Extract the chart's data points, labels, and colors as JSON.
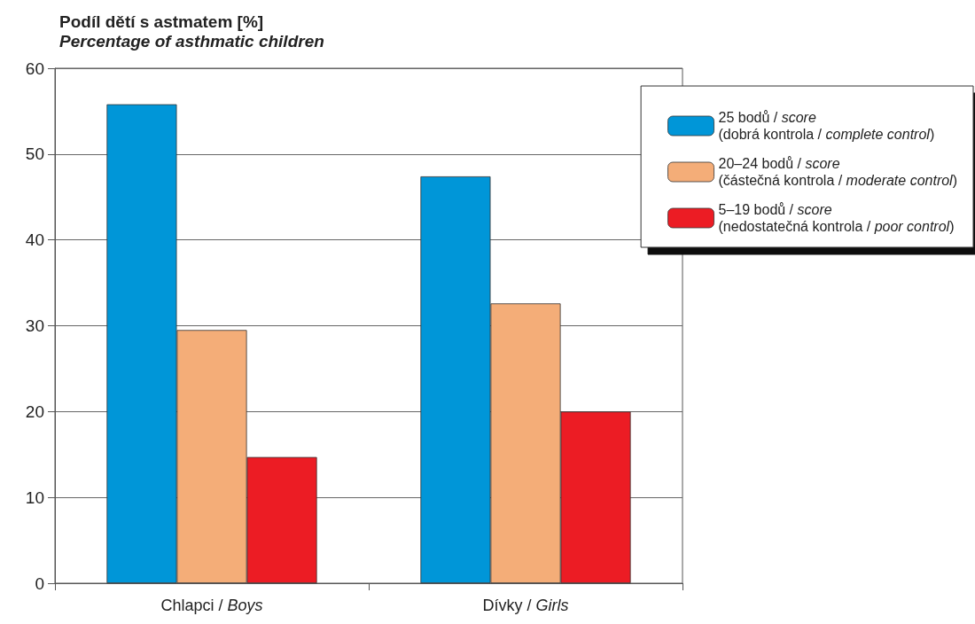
{
  "chart_data": {
    "type": "bar",
    "ylabel": "Podíl dětí s astmatem [%]\nPercentage of asthmatic children",
    "categories": [
      "Chlapci / Boys",
      "Dívky / Girls"
    ],
    "series": [
      {
        "name": "25 bodů / score\n(dobrá kontrola / complete control)",
        "color": "#0096d8",
        "values": [
          55.8,
          47.4
        ]
      },
      {
        "name": "20–24 bodů / score\n(částečná kontrola / moderate control)",
        "color": "#f4ad78",
        "values": [
          29.5,
          32.6
        ]
      },
      {
        "name": "5–19 bodů / score\n(nedostatečná kontrola / poor control)",
        "color": "#ec1c24",
        "values": [
          14.7,
          20.0
        ]
      }
    ],
    "ylim": [
      0,
      60
    ],
    "yticks": [
      0,
      10,
      20,
      30,
      40,
      50,
      60
    ],
    "grid": "y",
    "legend": "top right"
  }
}
